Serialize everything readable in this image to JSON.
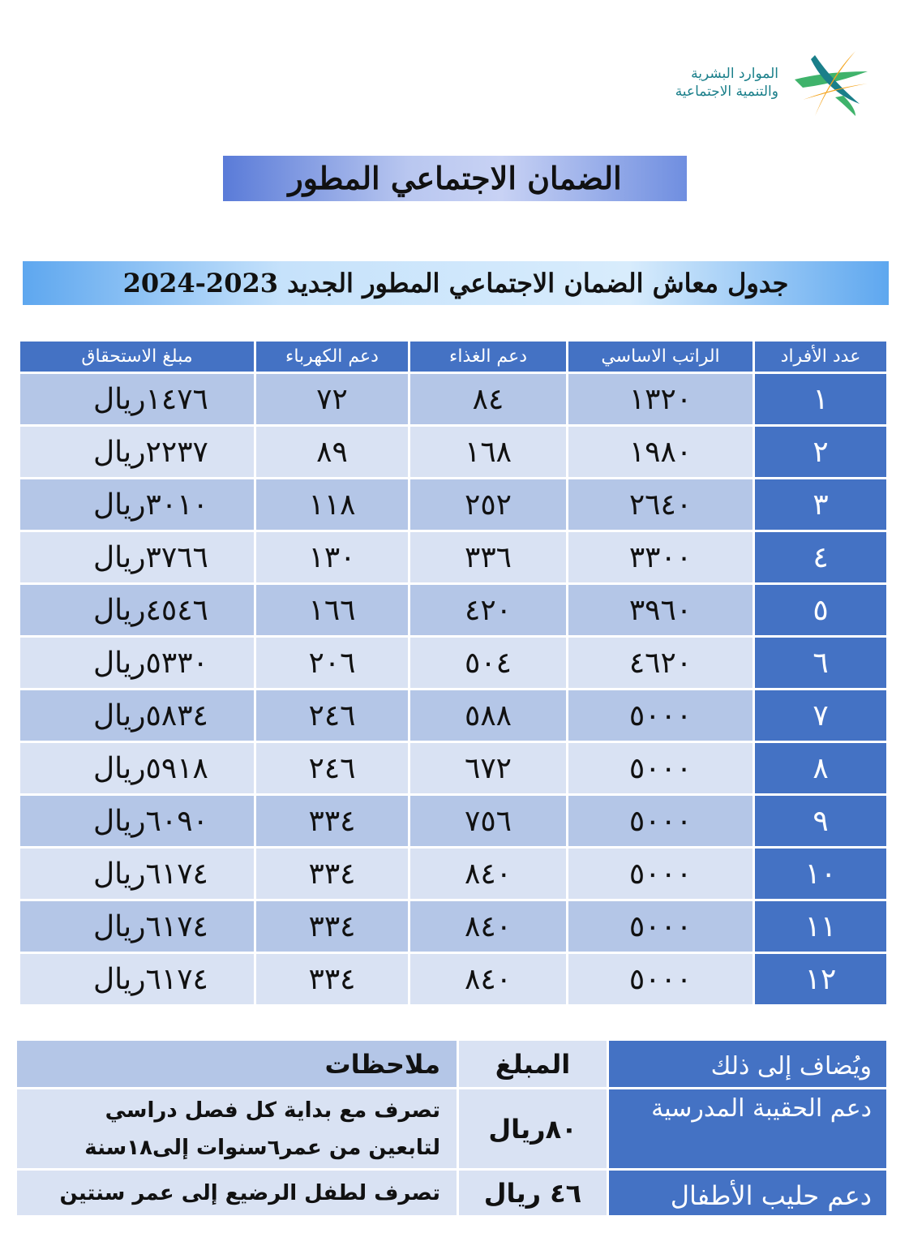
{
  "logo": {
    "line1": "الموارد البشرية",
    "line2": "والتنمية الاجتماعية",
    "colors": [
      "#1a7f8a",
      "#f4a41d",
      "#3fb36b"
    ]
  },
  "title": "الضمان الاجتماعي المطور",
  "subtitle": "جدول معاش الضمان الاجتماعي المطور الجديد 2023-2024",
  "table": {
    "headers": [
      "عدد الأفراد",
      "الراتب الاساسي",
      "دعم الغذاء",
      "دعم الكهرباء",
      "مبلغ الاستحقاق"
    ],
    "currency": "ريال",
    "rows": [
      [
        "١",
        "١٣٢٠",
        "٨٤",
        "٧٢",
        "١٤٧٦"
      ],
      [
        "٢",
        "١٩٨٠",
        "١٦٨",
        "٨٩",
        "٢٢٣٧"
      ],
      [
        "٣",
        "٢٦٤٠",
        "٢٥٢",
        "١١٨",
        "٣٠١٠"
      ],
      [
        "٤",
        "٣٣٠٠",
        "٣٣٦",
        "١٣٠",
        "٣٧٦٦"
      ],
      [
        "٥",
        "٣٩٦٠",
        "٤٢٠",
        "١٦٦",
        "٤٥٤٦"
      ],
      [
        "٦",
        "٤٦٢٠",
        "٥٠٤",
        "٢٠٦",
        "٥٣٣٠"
      ],
      [
        "٧",
        "٥٠٠٠",
        "٥٨٨",
        "٢٤٦",
        "٥٨٣٤"
      ],
      [
        "٨",
        "٥٠٠٠",
        "٦٧٢",
        "٢٤٦",
        "٥٩١٨"
      ],
      [
        "٩",
        "٥٠٠٠",
        "٧٥٦",
        "٣٣٤",
        "٦٠٩٠"
      ],
      [
        "١٠",
        "٥٠٠٠",
        "٨٤٠",
        "٣٣٤",
        "٦١٧٤"
      ],
      [
        "١١",
        "٥٠٠٠",
        "٨٤٠",
        "٣٣٤",
        "٦١٧٤"
      ],
      [
        "١٢",
        "٥٠٠٠",
        "٨٤٠",
        "٣٣٤",
        "٦١٧٤"
      ]
    ]
  },
  "extras": {
    "headers": [
      "ويُضاف إلى ذلك",
      "المبلغ",
      "ملاحظات"
    ],
    "rows": [
      {
        "label": "دعم الحقيبة المدرسية",
        "amount": "٨٠ريال",
        "note1": "تصرف مع بداية كل فصل دراسي",
        "note2": "لتابعين من عمر٦سنوات إلى١٨سنة"
      },
      {
        "label": "دعم حليب الأطفال",
        "amount": "٤٦ ريال",
        "note1": "تصرف  لطفل الرضيع إلى عمر سنتين"
      }
    ]
  }
}
